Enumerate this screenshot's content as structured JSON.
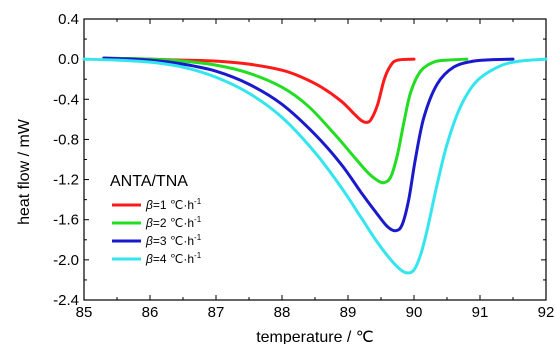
{
  "chart_data": {
    "type": "line",
    "title": "",
    "xlabel": "temperature / ℃",
    "ylabel": "heat flow / mW",
    "xlim": [
      85,
      92
    ],
    "ylim": [
      -2.4,
      0.4
    ],
    "x_ticks": [
      85,
      86,
      87,
      88,
      89,
      90,
      91,
      92
    ],
    "y_ticks": [
      0.4,
      0.0,
      -0.4,
      -0.8,
      -1.2,
      -1.6,
      -2.0,
      -2.4
    ],
    "y_tick_labels": [
      "0.4",
      "0.0",
      "-0.4",
      "-0.8",
      "-1.2",
      "-1.6",
      "-2.0",
      "-2.4"
    ],
    "grid": false,
    "legend_placement": "lower-left",
    "legend_title": "ANTA/TNA",
    "series": [
      {
        "name": "β=1 ℃·h-1",
        "legend": {
          "beta": "β",
          "value": "=1 ℃·h",
          "sup": "-1"
        },
        "color": "#ff1a1a",
        "points": [
          [
            85.3,
            0.01
          ],
          [
            86.0,
            0.0
          ],
          [
            86.5,
            -0.01
          ],
          [
            87.0,
            -0.02
          ],
          [
            87.5,
            -0.05
          ],
          [
            88.0,
            -0.11
          ],
          [
            88.3,
            -0.18
          ],
          [
            88.6,
            -0.28
          ],
          [
            88.9,
            -0.42
          ],
          [
            89.1,
            -0.55
          ],
          [
            89.2,
            -0.61
          ],
          [
            89.28,
            -0.63
          ],
          [
            89.35,
            -0.6
          ],
          [
            89.45,
            -0.45
          ],
          [
            89.55,
            -0.2
          ],
          [
            89.65,
            -0.06
          ],
          [
            89.75,
            -0.01
          ],
          [
            90.0,
            0.0
          ]
        ]
      },
      {
        "name": "β=2 ℃·h-1",
        "legend": {
          "beta": "β",
          "value": "=2 ℃·h",
          "sup": "-1"
        },
        "color": "#22dd22",
        "points": [
          [
            85.3,
            0.01
          ],
          [
            86.0,
            0.0
          ],
          [
            86.5,
            -0.02
          ],
          [
            87.0,
            -0.06
          ],
          [
            87.5,
            -0.14
          ],
          [
            88.0,
            -0.28
          ],
          [
            88.4,
            -0.47
          ],
          [
            88.8,
            -0.75
          ],
          [
            89.1,
            -0.98
          ],
          [
            89.3,
            -1.13
          ],
          [
            89.45,
            -1.21
          ],
          [
            89.55,
            -1.23
          ],
          [
            89.65,
            -1.17
          ],
          [
            89.75,
            -0.95
          ],
          [
            89.85,
            -0.62
          ],
          [
            89.95,
            -0.33
          ],
          [
            90.1,
            -0.12
          ],
          [
            90.3,
            -0.03
          ],
          [
            90.5,
            -0.01
          ],
          [
            90.8,
            0.0
          ]
        ]
      },
      {
        "name": "β=3 ℃·h-1",
        "legend": {
          "beta": "β",
          "value": "=3 ℃·h",
          "sup": "-1"
        },
        "color": "#1a1acc",
        "points": [
          [
            85.3,
            0.01
          ],
          [
            86.0,
            -0.01
          ],
          [
            86.5,
            -0.05
          ],
          [
            87.0,
            -0.12
          ],
          [
            87.5,
            -0.25
          ],
          [
            88.0,
            -0.45
          ],
          [
            88.5,
            -0.75
          ],
          [
            88.9,
            -1.05
          ],
          [
            89.2,
            -1.33
          ],
          [
            89.45,
            -1.55
          ],
          [
            89.6,
            -1.67
          ],
          [
            89.72,
            -1.71
          ],
          [
            89.82,
            -1.65
          ],
          [
            89.92,
            -1.4
          ],
          [
            90.02,
            -1.0
          ],
          [
            90.15,
            -0.58
          ],
          [
            90.35,
            -0.25
          ],
          [
            90.6,
            -0.08
          ],
          [
            90.9,
            -0.02
          ],
          [
            91.2,
            -0.005
          ],
          [
            91.5,
            0.0
          ]
        ]
      },
      {
        "name": "β=4 ℃·h-1",
        "legend": {
          "beta": "β",
          "value": "=4 ℃·h",
          "sup": "-1"
        },
        "color": "#33e6ee",
        "points": [
          [
            85.0,
            0.0
          ],
          [
            85.5,
            -0.01
          ],
          [
            86.0,
            -0.03
          ],
          [
            86.5,
            -0.08
          ],
          [
            87.0,
            -0.18
          ],
          [
            87.5,
            -0.34
          ],
          [
            88.0,
            -0.58
          ],
          [
            88.5,
            -0.93
          ],
          [
            88.9,
            -1.28
          ],
          [
            89.2,
            -1.58
          ],
          [
            89.45,
            -1.83
          ],
          [
            89.65,
            -2.0
          ],
          [
            89.8,
            -2.1
          ],
          [
            89.9,
            -2.13
          ],
          [
            90.0,
            -2.1
          ],
          [
            90.1,
            -1.95
          ],
          [
            90.2,
            -1.7
          ],
          [
            90.35,
            -1.25
          ],
          [
            90.5,
            -0.85
          ],
          [
            90.7,
            -0.48
          ],
          [
            90.95,
            -0.22
          ],
          [
            91.3,
            -0.07
          ],
          [
            91.6,
            -0.02
          ],
          [
            92.0,
            0.0
          ]
        ]
      }
    ]
  }
}
